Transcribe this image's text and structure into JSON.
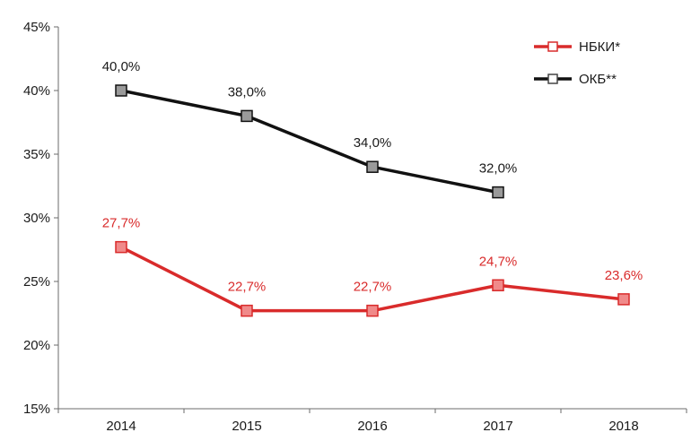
{
  "chart_data": {
    "type": "line",
    "categories": [
      "2014",
      "2015",
      "2016",
      "2017",
      "2018"
    ],
    "yticks": [
      "15%",
      "20%",
      "25%",
      "30%",
      "35%",
      "40%",
      "45%"
    ],
    "ylim": [
      15,
      45
    ],
    "grid": false,
    "legend_position": "top-right",
    "series": [
      {
        "name": "НБКИ*",
        "color": "#d92b2b",
        "marker_fill": "#f08a8a",
        "values": [
          27.7,
          22.7,
          22.7,
          24.7,
          23.6
        ],
        "labels": [
          "27,7%",
          "22,7%",
          "22,7%",
          "24,7%",
          "23,6%"
        ]
      },
      {
        "name": "ОКБ**",
        "color": "#111111",
        "marker_fill": "#9a9a9a",
        "values": [
          40.0,
          38.0,
          34.0,
          32.0,
          null
        ],
        "labels": [
          "40,0%",
          "38,0%",
          "34,0%",
          "32,0%",
          null
        ]
      }
    ]
  }
}
